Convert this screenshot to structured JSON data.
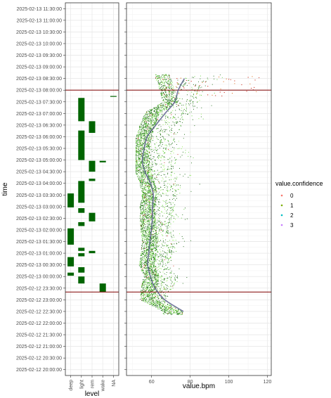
{
  "chart_data": [
    {
      "type": "bar",
      "panel": "left",
      "title": "",
      "xlabel": "level",
      "ylabel": "time",
      "categories": [
        "deep",
        "light",
        "rem",
        "wake",
        "NA"
      ],
      "y_ticks": [
        "2025-02-12 20:00:00",
        "2025-02-12 20:30:00",
        "2025-02-12 21:00:00",
        "2025-02-12 21:30:00",
        "2025-02-12 22:00:00",
        "2025-02-12 22:30:00",
        "2025-02-12 23:00:00",
        "2025-02-12 23:30:00",
        "2025-02-13 00:00:00",
        "2025-02-13 00:30:00",
        "2025-02-13 01:00:00",
        "2025-02-13 01:30:00",
        "2025-02-13 02:00:00",
        "2025-02-13 02:30:00",
        "2025-02-13 03:00:00",
        "2025-02-13 03:30:00",
        "2025-02-13 04:00:00",
        "2025-02-13 04:30:00",
        "2025-02-13 05:00:00",
        "2025-02-13 05:30:00",
        "2025-02-13 06:00:00",
        "2025-02-13 06:30:00",
        "2025-02-13 07:00:00",
        "2025-02-13 07:30:00",
        "2025-02-13 08:00:00",
        "2025-02-13 08:30:00",
        "2025-02-13 09:00:00",
        "2025-02-13 09:30:00",
        "2025-02-13 10:00:00",
        "2025-02-13 10:30:00",
        "2025-02-13 11:00:00",
        "2025-02-13 11:30:00"
      ],
      "ylim": [
        "2025-02-12 19:45:00",
        "2025-02-13 11:45:00"
      ],
      "reference_lines": [
        "2025-02-12 23:20:00",
        "2025-02-13 08:00:00"
      ],
      "segments": [
        {
          "level": "wake",
          "start": "2025-02-12 23:20:00",
          "end": "2025-02-12 23:42:00"
        },
        {
          "level": "light",
          "start": "2025-02-12 23:42:00",
          "end": "2025-02-13 00:00:00"
        },
        {
          "level": "deep",
          "start": "2025-02-13 00:02:00",
          "end": "2025-02-13 00:10:00"
        },
        {
          "level": "light",
          "start": "2025-02-13 00:10:00",
          "end": "2025-02-13 00:24:00"
        },
        {
          "level": "deep",
          "start": "2025-02-13 00:26:00",
          "end": "2025-02-13 00:50:00"
        },
        {
          "level": "light",
          "start": "2025-02-13 00:52:00",
          "end": "2025-02-13 01:00:00"
        },
        {
          "level": "rem",
          "start": "2025-02-13 01:00:00",
          "end": "2025-02-13 01:06:00"
        },
        {
          "level": "light",
          "start": "2025-02-13 01:06:00",
          "end": "2025-02-13 01:14:00"
        },
        {
          "level": "deep",
          "start": "2025-02-13 01:22:00",
          "end": "2025-02-13 02:04:00"
        },
        {
          "level": "light",
          "start": "2025-02-13 02:10:00",
          "end": "2025-02-13 02:20:00"
        },
        {
          "level": "rem",
          "start": "2025-02-13 02:22:00",
          "end": "2025-02-13 02:44:00"
        },
        {
          "level": "light",
          "start": "2025-02-13 02:44:00",
          "end": "2025-02-13 02:56:00"
        },
        {
          "level": "deep",
          "start": "2025-02-13 02:58:00",
          "end": "2025-02-13 03:34:00"
        },
        {
          "level": "light",
          "start": "2025-02-13 03:10:00",
          "end": "2025-02-13 04:06:00"
        },
        {
          "level": "rem",
          "start": "2025-02-13 04:06:00",
          "end": "2025-02-13 04:12:00"
        },
        {
          "level": "rem",
          "start": "2025-02-13 04:30:00",
          "end": "2025-02-13 04:58:00"
        },
        {
          "level": "wake",
          "start": "2025-02-13 04:54:00",
          "end": "2025-02-13 04:58:00"
        },
        {
          "level": "light",
          "start": "2025-02-13 05:00:00",
          "end": "2025-02-13 06:16:00"
        },
        {
          "level": "rem",
          "start": "2025-02-13 06:10:00",
          "end": "2025-02-13 06:40:00"
        },
        {
          "level": "light",
          "start": "2025-02-13 06:40:00",
          "end": "2025-02-13 07:40:00"
        },
        {
          "level": "NA",
          "start": "2025-02-13 07:43:00",
          "end": "2025-02-13 07:45:00"
        }
      ]
    },
    {
      "type": "scatter",
      "panel": "right",
      "title": "",
      "xlabel": "value.bpm",
      "ylabel": "time",
      "xlim": [
        47,
        122
      ],
      "x_ticks": [
        60,
        80,
        100,
        120
      ],
      "legend_title": "value.confidence",
      "legend_position": "right",
      "grid": true,
      "colors": {
        "0": "#f8766d",
        "1": "#7cae00",
        "2": "#00bfc4",
        "3": "#c77cff",
        "points_0": "#cc2e1e",
        "points_1": "#8ef04a",
        "points_2": "#5fd33a",
        "points_3": "#1c6b14",
        "smooth": "#5a5f8c",
        "ref_line": "#8b1a1a",
        "bar_fill": "#006400"
      },
      "legend": [
        "0",
        "1",
        "2",
        "3"
      ],
      "ylim": [
        "2025-02-12 19:45:00",
        "2025-02-13 11:45:00"
      ],
      "reference_lines": [
        "2025-02-12 23:20:00",
        "2025-02-13 08:00:00"
      ],
      "smooth_curve": {
        "bpm": [
          76.5,
          66.8,
          61.8,
          59.4,
          58.0,
          58.5,
          59.1,
          59.9,
          60.4,
          60.5,
          60.9,
          59.5,
          56.5,
          55.2,
          56.2,
          57.7,
          62.2,
          67.0,
          72.0,
          73.8,
          77.0
        ],
        "time": [
          "2025-02-12 22:30:00",
          "2025-02-12 23:00:00",
          "2025-02-12 23:30:00",
          "2025-02-13 00:00:00",
          "2025-02-13 00:30:00",
          "2025-02-13 01:00:00",
          "2025-02-13 01:30:00",
          "2025-02-13 02:00:00",
          "2025-02-13 02:30:00",
          "2025-02-13 03:00:00",
          "2025-02-13 03:30:00",
          "2025-02-13 04:00:00",
          "2025-02-13 04:30:00",
          "2025-02-13 05:00:00",
          "2025-02-13 05:30:00",
          "2025-02-13 06:00:00",
          "2025-02-13 06:30:00",
          "2025-02-13 07:00:00",
          "2025-02-13 07:30:00",
          "2025-02-13 08:00:00",
          "2025-02-13 08:30:00"
        ]
      },
      "density_profile": {
        "time": [
          "2025-02-12 22:30:00",
          "2025-02-12 23:00:00",
          "2025-02-12 23:30:00",
          "2025-02-13 00:00:00",
          "2025-02-13 00:30:00",
          "2025-02-13 01:00:00",
          "2025-02-13 01:30:00",
          "2025-02-13 02:00:00",
          "2025-02-13 02:30:00",
          "2025-02-13 03:00:00",
          "2025-02-13 03:30:00",
          "2025-02-13 04:00:00",
          "2025-02-13 04:30:00",
          "2025-02-13 05:00:00",
          "2025-02-13 05:30:00",
          "2025-02-13 06:00:00",
          "2025-02-13 06:30:00",
          "2025-02-13 07:00:00",
          "2025-02-13 07:30:00",
          "2025-02-13 08:00:00",
          "2025-02-13 08:30:00"
        ],
        "center_bpm": [
          70.0,
          58.0,
          58.5,
          60.0,
          57.5,
          58.5,
          59.0,
          58.5,
          58.0,
          58.0,
          59.0,
          58.0,
          55.5,
          55.0,
          55.0,
          56.0,
          58.0,
          60.0,
          70.0,
          68.0,
          66.0
        ],
        "max_bpm": [
          76.0,
          68.0,
          75.0,
          80.0,
          72.0,
          76.0,
          82.0,
          72.0,
          80.0,
          78.0,
          82.0,
          86.0,
          78.0,
          82.0,
          80.0,
          80.0,
          86.0,
          90.0,
          92.0,
          95.0,
          118.0
        ]
      }
    }
  ]
}
